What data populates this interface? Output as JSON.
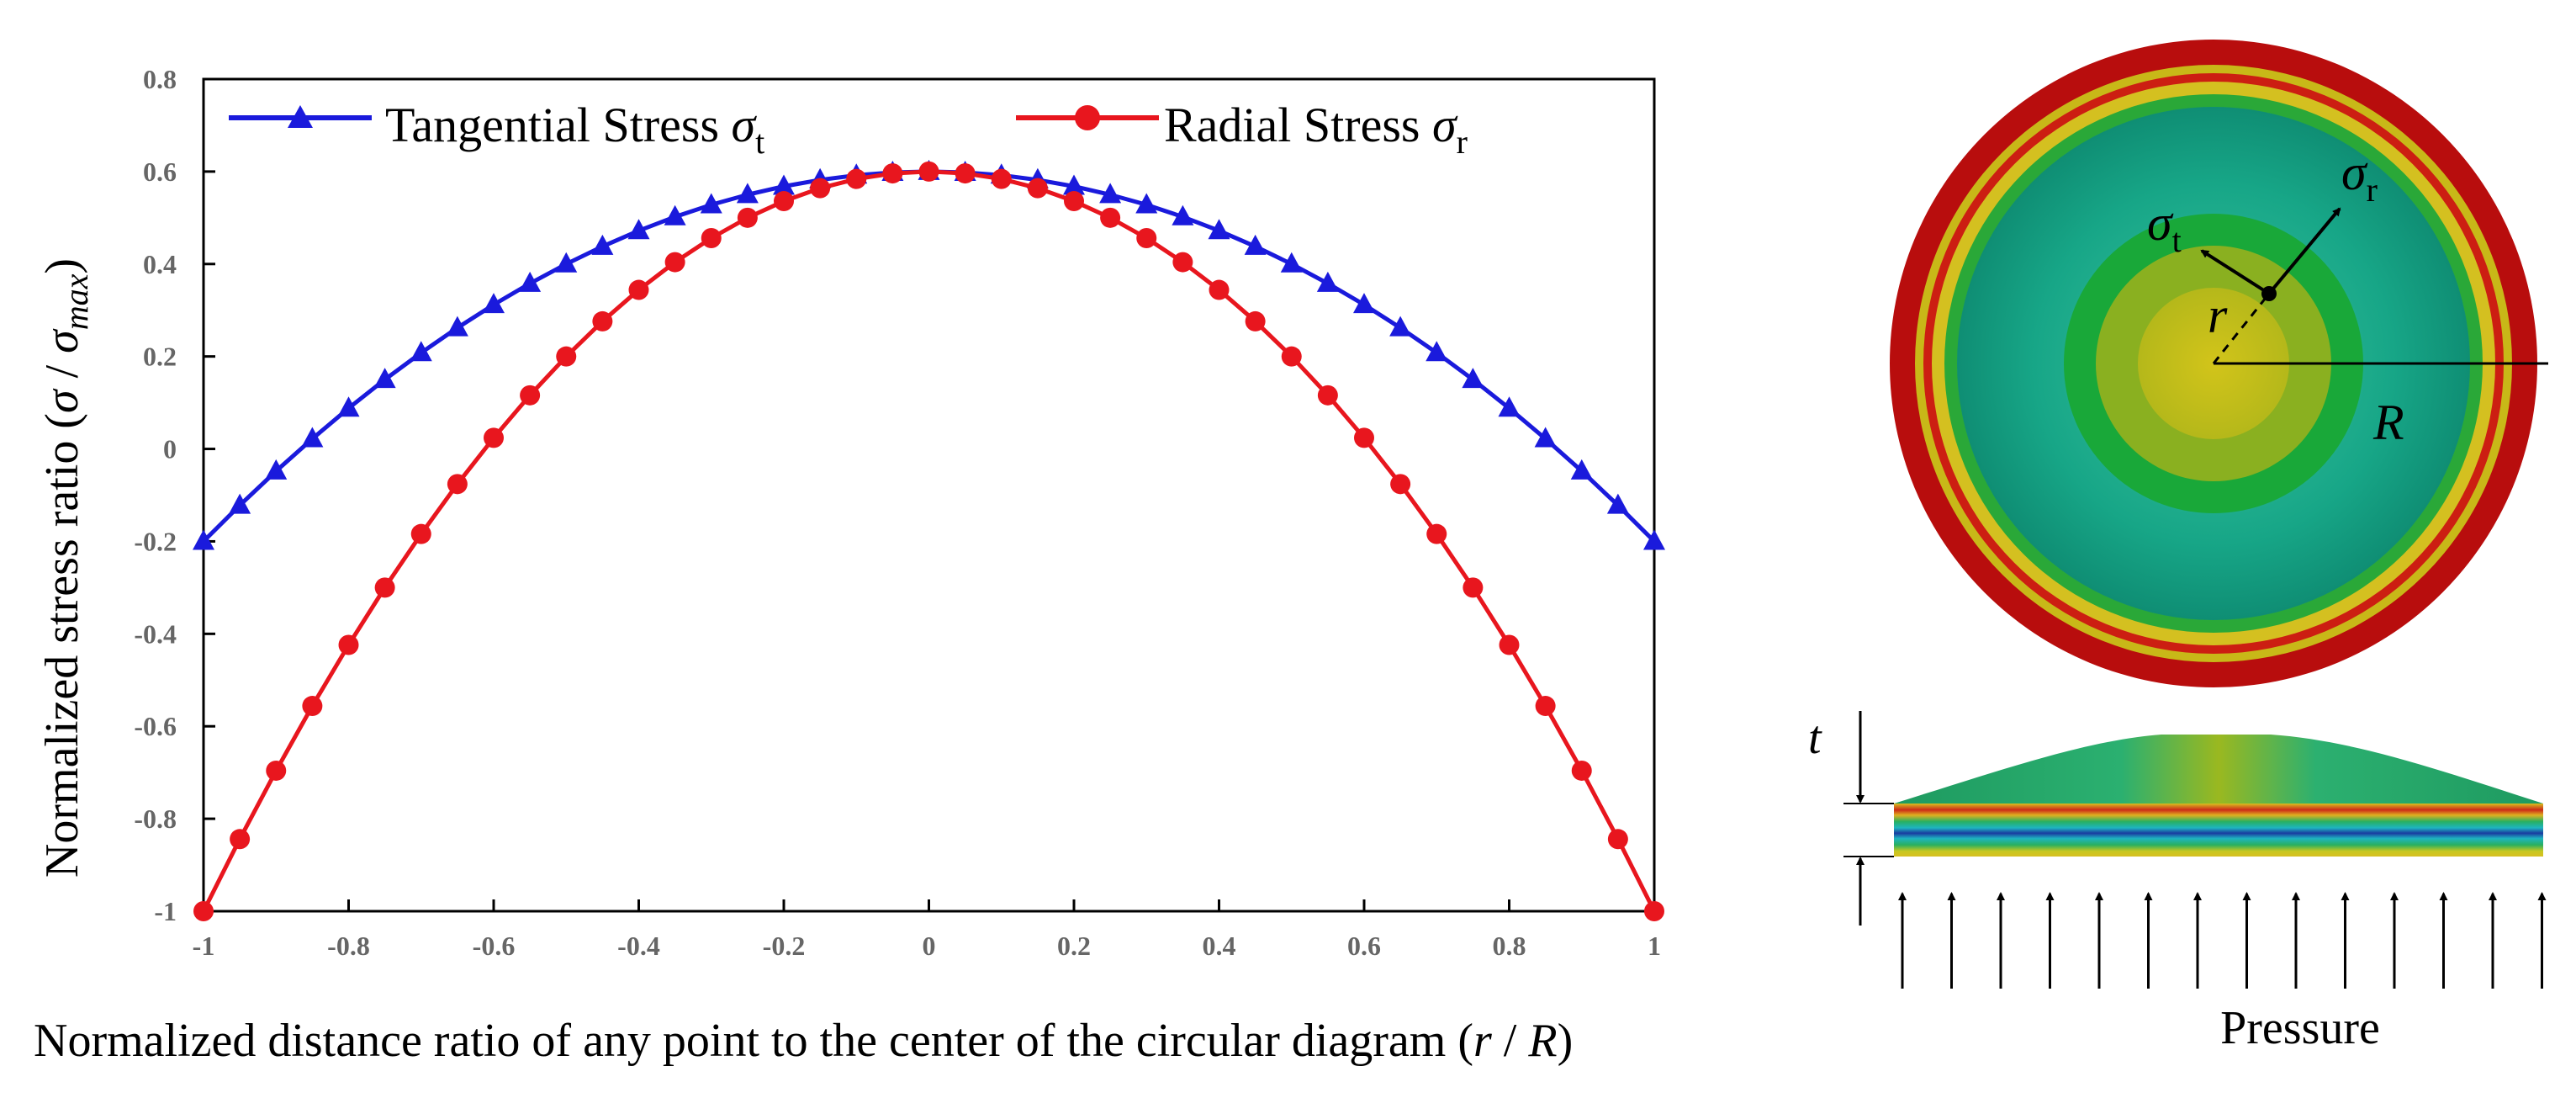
{
  "chart_data": {
    "type": "line",
    "title": "",
    "xlabel": "Normalized distance ratio of any point to the center of the circular diagram",
    "xlabel_suffix": "(r / R)",
    "ylabel": "Normalized stress ratio",
    "ylabel_suffix": "(σ / σ_max)",
    "xlim": [
      -1,
      1
    ],
    "ylim": [
      -1,
      0.8
    ],
    "x_ticks": [
      "-1",
      "-0.8",
      "-0.6",
      "-0.4",
      "-0.2",
      "0",
      "0.2",
      "0.4",
      "0.6",
      "0.8",
      "1"
    ],
    "y_ticks": [
      "0.8",
      "0.6",
      "0.4",
      "0.2",
      "0",
      "-0.2",
      "-0.4",
      "-0.6",
      "-0.8",
      "-1"
    ],
    "legend_position": "top",
    "series": [
      {
        "name": "Tangential Stress σt",
        "name_main": "Tangential Stress ",
        "name_sym": "σ",
        "name_sub": "t",
        "color": "#1a1adc",
        "marker": "triangle",
        "x": [
          -1,
          -0.95,
          -0.9,
          -0.85,
          -0.8,
          -0.75,
          -0.7,
          -0.65,
          -0.6,
          -0.55,
          -0.5,
          -0.45,
          -0.4,
          -0.35,
          -0.3,
          -0.25,
          -0.2,
          -0.15,
          -0.1,
          -0.05,
          0,
          0.05,
          0.1,
          0.15,
          0.2,
          0.25,
          0.3,
          0.35,
          0.4,
          0.45,
          0.5,
          0.55,
          0.6,
          0.65,
          0.7,
          0.75,
          0.8,
          0.85,
          0.9,
          0.95,
          1
        ],
        "values": [
          -0.2,
          -0.122,
          -0.048,
          0.022,
          0.088,
          0.15,
          0.208,
          0.262,
          0.312,
          0.358,
          0.4,
          0.438,
          0.472,
          0.502,
          0.528,
          0.55,
          0.568,
          0.582,
          0.592,
          0.598,
          0.6,
          0.598,
          0.592,
          0.582,
          0.568,
          0.55,
          0.528,
          0.502,
          0.472,
          0.438,
          0.4,
          0.358,
          0.312,
          0.262,
          0.208,
          0.15,
          0.088,
          0.022,
          -0.048,
          -0.122,
          -0.2
        ]
      },
      {
        "name": "Radial Stress σr",
        "name_main": "Radial Stress ",
        "name_sym": "σ",
        "name_sub": "r",
        "color": "#e8161e",
        "marker": "circle",
        "x": [
          -1,
          -0.95,
          -0.9,
          -0.85,
          -0.8,
          -0.75,
          -0.7,
          -0.65,
          -0.6,
          -0.55,
          -0.5,
          -0.45,
          -0.4,
          -0.35,
          -0.3,
          -0.25,
          -0.2,
          -0.15,
          -0.1,
          -0.05,
          0,
          0.05,
          0.1,
          0.15,
          0.2,
          0.25,
          0.3,
          0.35,
          0.4,
          0.45,
          0.5,
          0.55,
          0.6,
          0.65,
          0.7,
          0.75,
          0.8,
          0.85,
          0.9,
          0.95,
          1
        ],
        "values": [
          -1,
          -0.844,
          -0.696,
          -0.556,
          -0.424,
          -0.3,
          -0.184,
          -0.076,
          0.024,
          0.116,
          0.2,
          0.276,
          0.344,
          0.404,
          0.456,
          0.5,
          0.536,
          0.564,
          0.584,
          0.596,
          0.6,
          0.596,
          0.584,
          0.564,
          0.536,
          0.5,
          0.456,
          0.404,
          0.344,
          0.276,
          0.2,
          0.116,
          0.024,
          -0.076,
          -0.184,
          -0.3,
          -0.424,
          -0.556,
          -0.696,
          -0.844,
          -1
        ]
      }
    ]
  },
  "diagram": {
    "label_sigma": "σ",
    "label_sub_t": "t",
    "label_sub_r": "r",
    "label_r": "r",
    "label_R": "R",
    "label_t": "t",
    "pressure_label": "Pressure",
    "ring_colors": [
      "#b80d0d",
      "#c8b818",
      "#cc1e12",
      "#d4c020",
      "#2aa838",
      "#1e9878",
      "#22a888",
      "#19a839",
      "#8ab020",
      "#c0c020"
    ]
  }
}
